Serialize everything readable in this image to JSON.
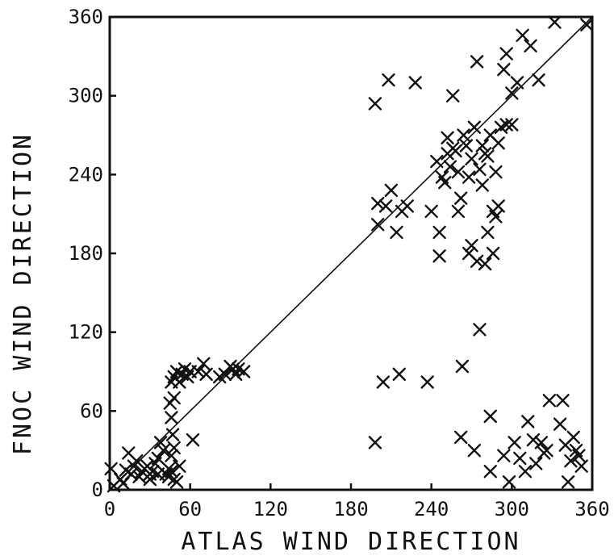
{
  "chart_data": {
    "type": "scatter",
    "xlabel": "ATLAS WIND DIRECTION",
    "ylabel": "FNOC WIND DIRECTION",
    "xlim": [
      0,
      360
    ],
    "ylim": [
      0,
      360
    ],
    "xticks": [
      0,
      60,
      120,
      180,
      240,
      300,
      360
    ],
    "yticks": [
      0,
      60,
      120,
      180,
      240,
      300,
      360
    ],
    "grid": false,
    "reference_line": {
      "x": [
        0,
        360
      ],
      "y": [
        0,
        360
      ]
    },
    "marker": "x",
    "points": [
      [
        1,
        16
      ],
      [
        3,
        3
      ],
      [
        8,
        8
      ],
      [
        10,
        5
      ],
      [
        12,
        15
      ],
      [
        14,
        28
      ],
      [
        16,
        12
      ],
      [
        18,
        18
      ],
      [
        20,
        22
      ],
      [
        22,
        10
      ],
      [
        24,
        14
      ],
      [
        26,
        16
      ],
      [
        28,
        18
      ],
      [
        30,
        12
      ],
      [
        32,
        14
      ],
      [
        34,
        20
      ],
      [
        36,
        24
      ],
      [
        38,
        36
      ],
      [
        40,
        30
      ],
      [
        42,
        12
      ],
      [
        44,
        10
      ],
      [
        46,
        14
      ],
      [
        48,
        8
      ],
      [
        50,
        6
      ],
      [
        52,
        18
      ],
      [
        30,
        8
      ],
      [
        36,
        12
      ],
      [
        44,
        16
      ],
      [
        46,
        26
      ],
      [
        48,
        32
      ],
      [
        47,
        42
      ],
      [
        46,
        55
      ],
      [
        45,
        66
      ],
      [
        48,
        70
      ],
      [
        46,
        82
      ],
      [
        48,
        86
      ],
      [
        50,
        90
      ],
      [
        52,
        82
      ],
      [
        54,
        88
      ],
      [
        56,
        92
      ],
      [
        58,
        86
      ],
      [
        60,
        90
      ],
      [
        62,
        38
      ],
      [
        66,
        90
      ],
      [
        70,
        96
      ],
      [
        72,
        88
      ],
      [
        82,
        86
      ],
      [
        86,
        88
      ],
      [
        90,
        94
      ],
      [
        92,
        92
      ],
      [
        94,
        88
      ],
      [
        96,
        92
      ],
      [
        100,
        90
      ],
      [
        198,
        36
      ],
      [
        198,
        294
      ],
      [
        200,
        218
      ],
      [
        200,
        202
      ],
      [
        204,
        82
      ],
      [
        206,
        216
      ],
      [
        208,
        312
      ],
      [
        210,
        228
      ],
      [
        214,
        196
      ],
      [
        216,
        88
      ],
      [
        218,
        212
      ],
      [
        222,
        216
      ],
      [
        228,
        310
      ],
      [
        237,
        82
      ],
      [
        240,
        212
      ],
      [
        244,
        250
      ],
      [
        246,
        196
      ],
      [
        246,
        178
      ],
      [
        248,
        238
      ],
      [
        250,
        234
      ],
      [
        252,
        256
      ],
      [
        252,
        268
      ],
      [
        254,
        246
      ],
      [
        256,
        260
      ],
      [
        256,
        300
      ],
      [
        258,
        258
      ],
      [
        260,
        242
      ],
      [
        260,
        212
      ],
      [
        262,
        222
      ],
      [
        262,
        40
      ],
      [
        263,
        94
      ],
      [
        264,
        270
      ],
      [
        266,
        262
      ],
      [
        268,
        238
      ],
      [
        268,
        180
      ],
      [
        270,
        252
      ],
      [
        270,
        186
      ],
      [
        272,
        276
      ],
      [
        272,
        30
      ],
      [
        274,
        326
      ],
      [
        274,
        174
      ],
      [
        276,
        244
      ],
      [
        276,
        122
      ],
      [
        278,
        262
      ],
      [
        278,
        232
      ],
      [
        280,
        256
      ],
      [
        280,
        172
      ],
      [
        282,
        254
      ],
      [
        282,
        196
      ],
      [
        284,
        270
      ],
      [
        284,
        56
      ],
      [
        284,
        14
      ],
      [
        286,
        212
      ],
      [
        286,
        180
      ],
      [
        288,
        242
      ],
      [
        288,
        208
      ],
      [
        290,
        216
      ],
      [
        290,
        264
      ],
      [
        292,
        276
      ],
      [
        294,
        26
      ],
      [
        294,
        320
      ],
      [
        296,
        332
      ],
      [
        296,
        278
      ],
      [
        298,
        6
      ],
      [
        300,
        302
      ],
      [
        300,
        278
      ],
      [
        302,
        36
      ],
      [
        304,
        310
      ],
      [
        306,
        24
      ],
      [
        308,
        346
      ],
      [
        310,
        14
      ],
      [
        312,
        52
      ],
      [
        314,
        338
      ],
      [
        316,
        38
      ],
      [
        318,
        20
      ],
      [
        320,
        312
      ],
      [
        322,
        36
      ],
      [
        324,
        28
      ],
      [
        326,
        30
      ],
      [
        328,
        68
      ],
      [
        332,
        356
      ],
      [
        336,
        50
      ],
      [
        338,
        68
      ],
      [
        340,
        34
      ],
      [
        342,
        6
      ],
      [
        344,
        22
      ],
      [
        346,
        40
      ],
      [
        348,
        30
      ],
      [
        350,
        26
      ],
      [
        352,
        18
      ],
      [
        356,
        354
      ]
    ]
  }
}
